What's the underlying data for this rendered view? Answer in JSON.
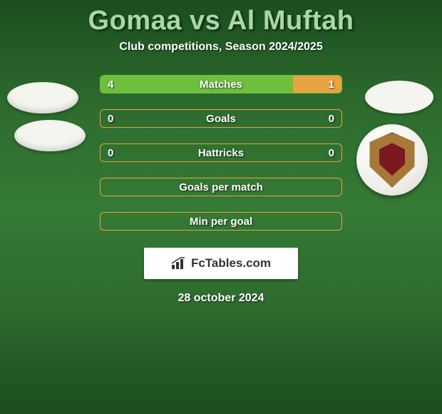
{
  "header": {
    "title": "Gomaa vs Al Muftah",
    "subtitle": "Club competitions, Season 2024/2025"
  },
  "colors": {
    "border_green": "#6fbf3f",
    "fill_green": "#6fbf3f",
    "border_orange": "#e6a340",
    "fill_orange": "#e6a340"
  },
  "stats": [
    {
      "label": "Matches",
      "left_val": "4",
      "right_val": "1",
      "left_pct": 80,
      "right_pct": 20,
      "border_color": "#6fbf3f",
      "left_fill": "#6fbf3f",
      "right_fill": "#e6a340"
    },
    {
      "label": "Goals",
      "left_val": "0",
      "right_val": "0",
      "left_pct": 0,
      "right_pct": 0,
      "border_color": "#e6a340",
      "left_fill": "#6fbf3f",
      "right_fill": "#e6a340"
    },
    {
      "label": "Hattricks",
      "left_val": "0",
      "right_val": "0",
      "left_pct": 0,
      "right_pct": 0,
      "border_color": "#e6a340",
      "left_fill": "#6fbf3f",
      "right_fill": "#e6a340"
    },
    {
      "label": "Goals per match",
      "left_val": "",
      "right_val": "",
      "left_pct": 0,
      "right_pct": 0,
      "border_color": "#e6a340",
      "left_fill": "#6fbf3f",
      "right_fill": "#e6a340"
    },
    {
      "label": "Min per goal",
      "left_val": "",
      "right_val": "",
      "left_pct": 0,
      "right_pct": 0,
      "border_color": "#e6a340",
      "left_fill": "#6fbf3f",
      "right_fill": "#e6a340"
    }
  ],
  "footer": {
    "logo": "FcTables.com",
    "date": "28 october 2024"
  }
}
